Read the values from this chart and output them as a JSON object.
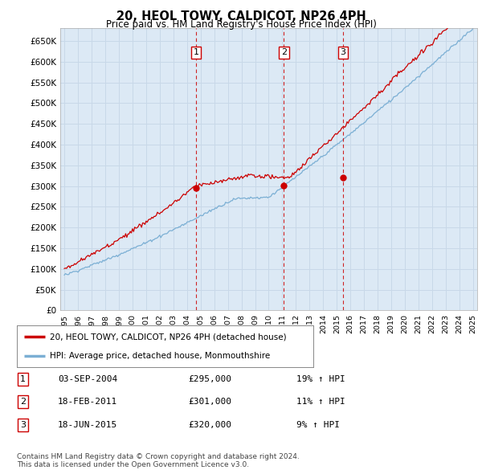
{
  "title": "20, HEOL TOWY, CALDICOT, NP26 4PH",
  "subtitle": "Price paid vs. HM Land Registry's House Price Index (HPI)",
  "background_color": "#ffffff",
  "plot_bg_color": "#dce9f5",
  "grid_color": "#c8d8e8",
  "red_line_color": "#cc0000",
  "blue_line_color": "#7bafd4",
  "vline_color": "#cc0000",
  "yticks": [
    0,
    50000,
    100000,
    150000,
    200000,
    250000,
    300000,
    350000,
    400000,
    450000,
    500000,
    550000,
    600000,
    650000
  ],
  "ytick_labels": [
    "£0",
    "£50K",
    "£100K",
    "£150K",
    "£200K",
    "£250K",
    "£300K",
    "£350K",
    "£400K",
    "£450K",
    "£500K",
    "£550K",
    "£600K",
    "£650K"
  ],
  "xlim_start": 1994.7,
  "xlim_end": 2025.3,
  "ylim_bottom": 0,
  "ylim_top": 680000,
  "transaction_markers": [
    {
      "year": 2004.67,
      "price": 295000,
      "label": "1"
    },
    {
      "year": 2011.12,
      "price": 301000,
      "label": "2"
    },
    {
      "year": 2015.46,
      "price": 320000,
      "label": "3"
    }
  ],
  "legend_entries": [
    "20, HEOL TOWY, CALDICOT, NP26 4PH (detached house)",
    "HPI: Average price, detached house, Monmouthshire"
  ],
  "table_rows": [
    {
      "num": "1",
      "date": "03-SEP-2004",
      "price": "£295,000",
      "hpi": "19% ↑ HPI"
    },
    {
      "num": "2",
      "date": "18-FEB-2011",
      "price": "£301,000",
      "hpi": "11% ↑ HPI"
    },
    {
      "num": "3",
      "date": "18-JUN-2015",
      "price": "£320,000",
      "hpi": "9% ↑ HPI"
    }
  ],
  "footnote": "Contains HM Land Registry data © Crown copyright and database right 2024.\nThis data is licensed under the Open Government Licence v3.0.",
  "xtick_years": [
    1995,
    1996,
    1997,
    1998,
    1999,
    2000,
    2001,
    2002,
    2003,
    2004,
    2005,
    2006,
    2007,
    2008,
    2009,
    2010,
    2011,
    2012,
    2013,
    2014,
    2015,
    2016,
    2017,
    2018,
    2019,
    2020,
    2021,
    2022,
    2023,
    2024,
    2025
  ]
}
